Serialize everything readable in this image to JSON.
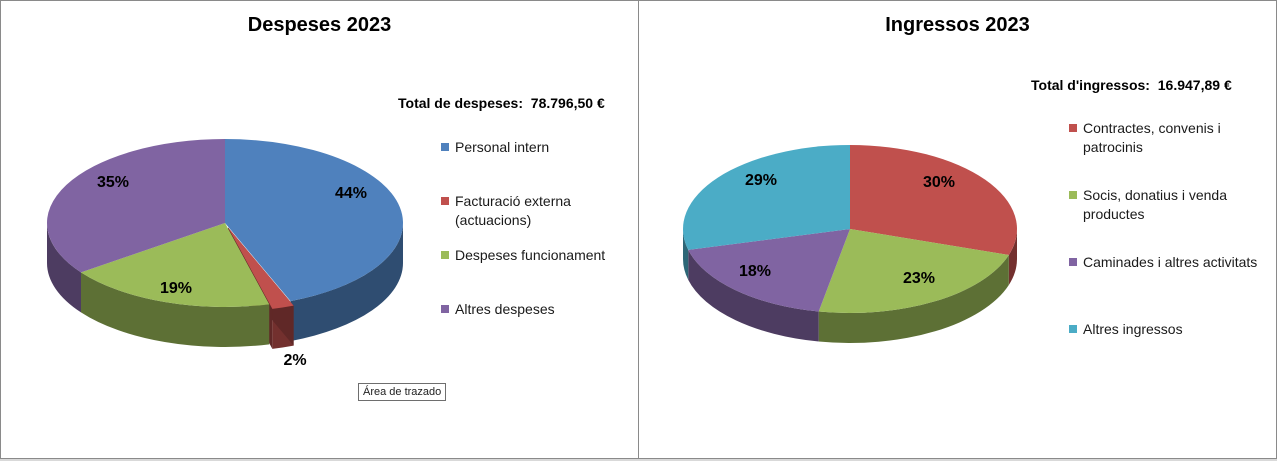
{
  "chart_data": [
    {
      "type": "pie",
      "title": "Despeses 2023",
      "total_label": "Total de despeses:",
      "total_value": "78.796,50 €",
      "categories": [
        "Personal intern",
        "Facturació externa (actuacions)",
        "Despeses funcionament",
        "Altres despeses"
      ],
      "values": [
        44,
        2,
        19,
        35
      ],
      "data_labels": [
        "44%",
        "2%",
        "19%",
        "35%"
      ],
      "colors": [
        "#4f81bd",
        "#c0504d",
        "#9bbb59",
        "#8064a2"
      ],
      "legend_position": "right",
      "style": "3d"
    },
    {
      "type": "pie",
      "title": "Ingressos 2023",
      "total_label": "Total d'ingressos:",
      "total_value": "16.947,89 €",
      "categories": [
        "Contractes, convenis i patrocinis",
        "Socis, donatius i venda productes",
        "Caminades i altres activitats",
        "Altres ingressos"
      ],
      "values": [
        30,
        23,
        18,
        29
      ],
      "data_labels": [
        "30%",
        "23%",
        "18%",
        "29%"
      ],
      "colors": [
        "#c0504d",
        "#9bbb59",
        "#8064a2",
        "#4bacc6"
      ],
      "legend_position": "right",
      "style": "3d"
    }
  ],
  "tooltip": "Área de trazado"
}
